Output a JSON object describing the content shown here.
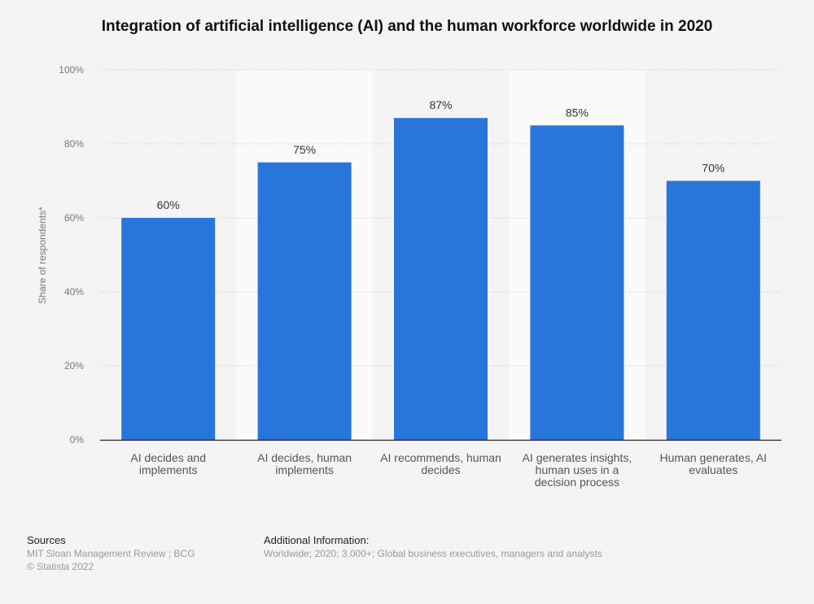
{
  "chart_data": {
    "type": "bar",
    "title": "Integration of artificial intelligence (AI) and the human workforce worldwide in 2020",
    "xlabel": "",
    "ylabel": "Share of respondents*",
    "ylim": [
      0,
      100
    ],
    "yticks": [
      0,
      20,
      40,
      60,
      80,
      100
    ],
    "ytick_suffix": "%",
    "grid": true,
    "bar_color": "#2875dc",
    "categories": [
      [
        "AI decides and",
        "implements"
      ],
      [
        "AI decides, human",
        "implements"
      ],
      [
        "AI recommends, human",
        "decides"
      ],
      [
        "AI generates insights,",
        "human uses in a",
        "decision process"
      ],
      [
        "Human generates, AI",
        "evaluates"
      ]
    ],
    "values": [
      60,
      75,
      87,
      85,
      70
    ],
    "data_labels": [
      "60%",
      "75%",
      "87%",
      "85%",
      "70%"
    ]
  },
  "footer": {
    "sources_heading": "Sources",
    "sources_line1": "MIT Sloan Management Review ; BCG",
    "sources_line2": "© Statista 2022",
    "additional_heading": "Additional Information:",
    "additional_text": "Worldwide; 2020; 3,000+; Global business executives, managers and analysts"
  }
}
